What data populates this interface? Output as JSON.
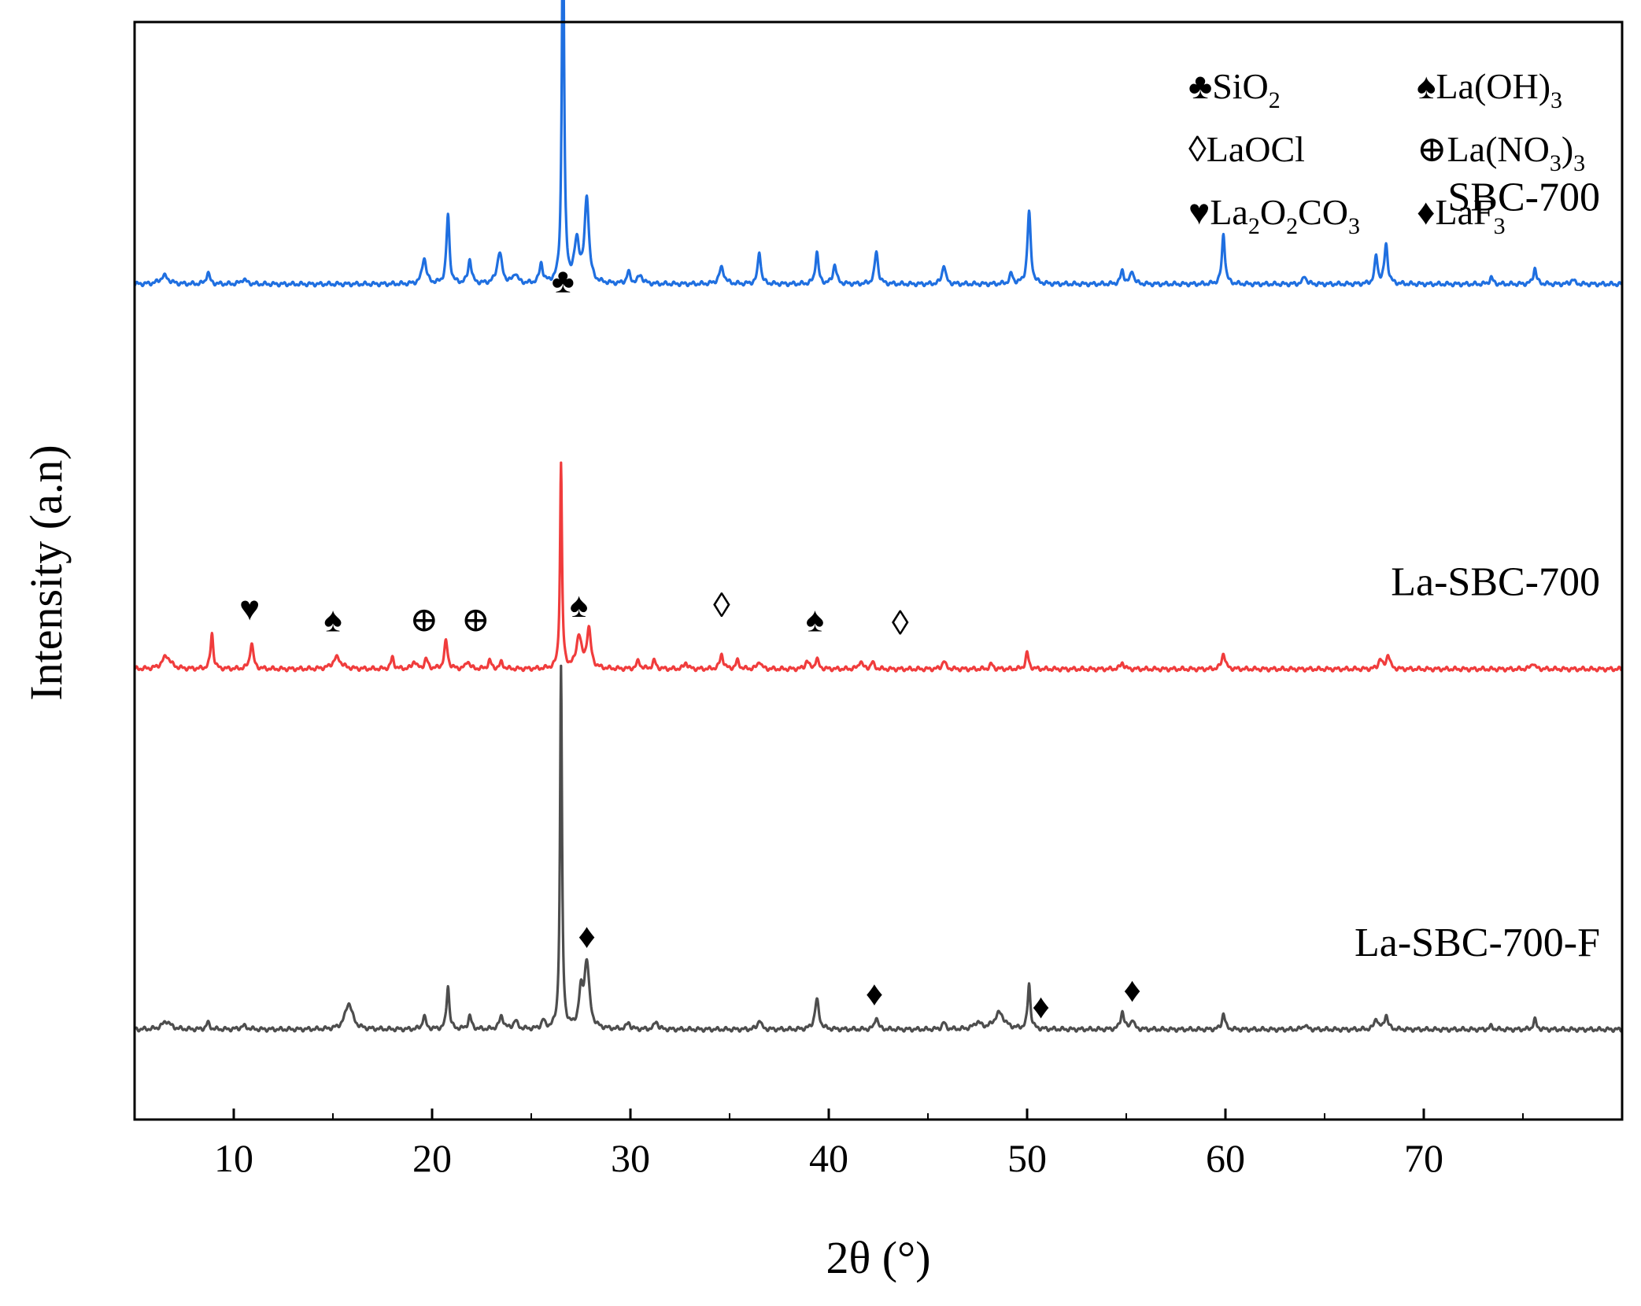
{
  "chart_data": {
    "type": "line",
    "title": "",
    "xlabel": "2θ (°)",
    "ylabel": "Intensity (a.n)",
    "xlim": [
      5,
      80
    ],
    "xticks": [
      10,
      20,
      30,
      40,
      50,
      60,
      70
    ],
    "yticks": [],
    "grid": false,
    "legend_position": "top-right",
    "legend": [
      {
        "symbol": "♣",
        "label": "SiO",
        "sub": "2",
        "tail": ""
      },
      {
        "symbol": "♠",
        "label": "La(OH)",
        "sub": "3",
        "tail": ""
      },
      {
        "symbol": "◊",
        "label": "LaOCl",
        "sub": "",
        "tail": ""
      },
      {
        "symbol": "⊕",
        "label": "La(NO",
        "sub": "3",
        "tail": ")",
        "sub2": "3"
      },
      {
        "symbol": "♥",
        "label": "La",
        "sub": "2",
        "tail": "O",
        "sub2": "2",
        "tail2": "CO",
        "sub3": "3"
      },
      {
        "symbol": "♦",
        "label": "LaF",
        "sub": "3",
        "tail": ""
      }
    ],
    "series": [
      {
        "name": "SBC-700",
        "color": "#1f6fe0",
        "baseline_offset": 4.05,
        "baseline": 0.05,
        "peaks": [
          [
            6.5,
            0.05,
            0.5
          ],
          [
            8.7,
            0.07,
            0.2
          ],
          [
            10.5,
            0.03,
            0.3
          ],
          [
            19.6,
            0.16,
            0.25
          ],
          [
            20.8,
            0.42,
            0.18
          ],
          [
            21.9,
            0.15,
            0.2
          ],
          [
            23.4,
            0.19,
            0.3
          ],
          [
            24.2,
            0.06,
            0.25
          ],
          [
            25.5,
            0.12,
            0.2
          ],
          [
            26.6,
            2.45,
            0.13
          ],
          [
            27.3,
            0.25,
            0.3
          ],
          [
            27.8,
            0.52,
            0.25
          ],
          [
            29.9,
            0.07,
            0.2
          ],
          [
            30.5,
            0.05,
            0.3
          ],
          [
            34.6,
            0.1,
            0.3
          ],
          [
            36.5,
            0.2,
            0.18
          ],
          [
            39.4,
            0.2,
            0.18
          ],
          [
            40.3,
            0.12,
            0.2
          ],
          [
            42.4,
            0.2,
            0.2
          ],
          [
            45.8,
            0.12,
            0.2
          ],
          [
            49.2,
            0.06,
            0.2
          ],
          [
            50.1,
            0.44,
            0.2
          ],
          [
            54.8,
            0.08,
            0.2
          ],
          [
            55.3,
            0.08,
            0.2
          ],
          [
            59.9,
            0.31,
            0.18
          ],
          [
            64.0,
            0.05,
            0.2
          ],
          [
            67.6,
            0.17,
            0.18
          ],
          [
            68.1,
            0.24,
            0.2
          ],
          [
            73.4,
            0.04,
            0.2
          ],
          [
            75.6,
            0.1,
            0.18
          ],
          [
            77.5,
            0.03,
            0.2
          ]
        ]
      },
      {
        "name": "La-SBC-700",
        "color": "#f03c3c",
        "baseline_offset": 1.7,
        "baseline": 0.05,
        "peaks": [
          [
            6.6,
            0.08,
            0.5
          ],
          [
            8.9,
            0.22,
            0.16
          ],
          [
            10.9,
            0.16,
            0.2
          ],
          [
            15.2,
            0.07,
            0.5
          ],
          [
            18.0,
            0.07,
            0.18
          ],
          [
            19.1,
            0.05,
            0.2
          ],
          [
            19.7,
            0.06,
            0.2
          ],
          [
            20.7,
            0.17,
            0.2
          ],
          [
            21.8,
            0.05,
            0.2
          ],
          [
            22.9,
            0.05,
            0.2
          ],
          [
            23.5,
            0.04,
            0.2
          ],
          [
            26.5,
            1.25,
            0.12
          ],
          [
            27.4,
            0.2,
            0.3
          ],
          [
            27.9,
            0.24,
            0.25
          ],
          [
            30.4,
            0.05,
            0.2
          ],
          [
            31.2,
            0.05,
            0.2
          ],
          [
            32.8,
            0.04,
            0.2
          ],
          [
            34.6,
            0.09,
            0.2
          ],
          [
            35.4,
            0.05,
            0.2
          ],
          [
            36.5,
            0.05,
            0.2
          ],
          [
            38.9,
            0.05,
            0.2
          ],
          [
            39.4,
            0.06,
            0.2
          ],
          [
            41.6,
            0.05,
            0.2
          ],
          [
            42.2,
            0.04,
            0.2
          ],
          [
            45.8,
            0.05,
            0.2
          ],
          [
            48.2,
            0.03,
            0.2
          ],
          [
            50.0,
            0.1,
            0.18
          ],
          [
            54.8,
            0.04,
            0.2
          ],
          [
            59.9,
            0.1,
            0.2
          ],
          [
            67.8,
            0.06,
            0.2
          ],
          [
            68.2,
            0.09,
            0.2
          ],
          [
            75.5,
            0.04,
            0.2
          ]
        ]
      },
      {
        "name": "La-SBC-700-F",
        "color": "#4d4d4d",
        "baseline_offset": -0.5,
        "baseline": 0.05,
        "peaks": [
          [
            6.6,
            0.05,
            0.5
          ],
          [
            8.7,
            0.04,
            0.2
          ],
          [
            10.5,
            0.02,
            0.4
          ],
          [
            15.8,
            0.16,
            0.45
          ],
          [
            19.6,
            0.08,
            0.2
          ],
          [
            20.8,
            0.27,
            0.16
          ],
          [
            21.9,
            0.08,
            0.2
          ],
          [
            23.5,
            0.08,
            0.25
          ],
          [
            24.2,
            0.05,
            0.25
          ],
          [
            25.6,
            0.05,
            0.2
          ],
          [
            26.5,
            2.2,
            0.12
          ],
          [
            27.5,
            0.2,
            0.25
          ],
          [
            27.8,
            0.4,
            0.3
          ],
          [
            29.9,
            0.04,
            0.2
          ],
          [
            31.3,
            0.05,
            0.2
          ],
          [
            36.5,
            0.06,
            0.2
          ],
          [
            39.4,
            0.18,
            0.25
          ],
          [
            42.4,
            0.08,
            0.18
          ],
          [
            45.8,
            0.04,
            0.2
          ],
          [
            47.5,
            0.04,
            0.4
          ],
          [
            48.6,
            0.1,
            0.6
          ],
          [
            50.1,
            0.28,
            0.16
          ],
          [
            54.8,
            0.11,
            0.2
          ],
          [
            55.3,
            0.06,
            0.2
          ],
          [
            59.9,
            0.1,
            0.18
          ],
          [
            64.0,
            0.03,
            0.2
          ],
          [
            67.6,
            0.07,
            0.2
          ],
          [
            68.1,
            0.09,
            0.2
          ],
          [
            73.4,
            0.02,
            0.2
          ],
          [
            75.6,
            0.06,
            0.18
          ]
        ]
      }
    ],
    "annotations": [
      {
        "symbol": "♣",
        "x": 26.6,
        "y": 4.05,
        "series": "SBC-700",
        "kind": "SiO2"
      },
      {
        "symbol": "♥",
        "x": 10.8,
        "y": 2.05,
        "series": "La-SBC-700",
        "kind": "La2O2CO3"
      },
      {
        "symbol": "♠",
        "x": 15.0,
        "y": 1.98,
        "series": "La-SBC-700",
        "kind": "La(OH)3"
      },
      {
        "symbol": "⊕",
        "x": 19.6,
        "y": 1.98,
        "series": "La-SBC-700",
        "kind": "La(NO3)3"
      },
      {
        "symbol": "⊕",
        "x": 22.2,
        "y": 1.98,
        "series": "La-SBC-700",
        "kind": "La(NO3)3"
      },
      {
        "symbol": "♠",
        "x": 27.4,
        "y": 2.07,
        "series": "La-SBC-700",
        "kind": "La(OH)3"
      },
      {
        "symbol": "◊",
        "x": 34.6,
        "y": 2.07,
        "series": "La-SBC-700",
        "kind": "LaOCl"
      },
      {
        "symbol": "♠",
        "x": 39.3,
        "y": 1.98,
        "series": "La-SBC-700",
        "kind": "La(OH)3"
      },
      {
        "symbol": "◊",
        "x": 43.6,
        "y": 1.96,
        "series": "La-SBC-700",
        "kind": "LaOCl"
      },
      {
        "symbol": "♦",
        "x": 27.8,
        "y": 0.05,
        "series": "La-SBC-700-F",
        "kind": "LaF3"
      },
      {
        "symbol": "♦",
        "x": 42.3,
        "y": -0.3,
        "series": "La-SBC-700-F",
        "kind": "LaF3"
      },
      {
        "symbol": "♦",
        "x": 50.7,
        "y": -0.38,
        "series": "La-SBC-700-F",
        "kind": "LaF3"
      },
      {
        "symbol": "♦",
        "x": 55.3,
        "y": -0.28,
        "series": "La-SBC-700-F",
        "kind": "LaF3"
      }
    ],
    "ylim": [
      -1.0,
      5.7
    ]
  }
}
